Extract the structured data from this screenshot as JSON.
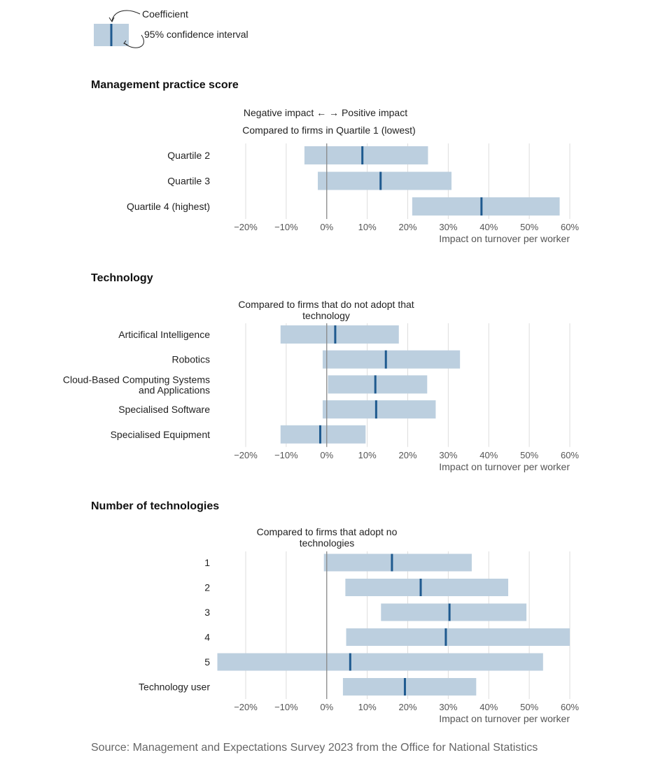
{
  "legend": {
    "coefficient_label": "Coefficient",
    "ci_label": "95% confidence interval"
  },
  "colors": {
    "interval": "#bccfdf",
    "coefficient": "#1f5a8f",
    "grid": "#dddddd",
    "zero_line": "#888888",
    "tick_text": "#555555"
  },
  "source": "Source: Management and Expectations Survey 2023 from the Office for National Statistics",
  "chart_data": [
    {
      "type": "forest",
      "title": "Management practice score",
      "direction_label": "Negative impact ←  → Positive impact",
      "subtitle": "Compared to firms in Quartile 1 (lowest)",
      "xlabel": "Impact on turnover per worker",
      "xlim": [
        -20,
        60
      ],
      "xticks": [
        "−20%",
        "−10%",
        "0%",
        "10%",
        "20%",
        "30%",
        "40%",
        "50%",
        "60%"
      ],
      "rows": [
        {
          "label": "Quartile 2",
          "coef": 8.8,
          "low": -5.5,
          "high": 25.0
        },
        {
          "label": "Quartile 3",
          "coef": 13.3,
          "low": -2.2,
          "high": 30.8
        },
        {
          "label": "Quartile 4 (highest)",
          "coef": 38.2,
          "low": 21.1,
          "high": 57.5
        }
      ]
    },
    {
      "type": "forest",
      "title": "Technology",
      "subtitle": "Compared to firms that do not adopt that technology",
      "xlabel": "Impact on turnover per worker",
      "xlim": [
        -20,
        60
      ],
      "xticks": [
        "−20%",
        "−10%",
        "0%",
        "10%",
        "20%",
        "30%",
        "40%",
        "50%",
        "60%"
      ],
      "rows": [
        {
          "label": "Articifical Intelligence",
          "coef": 2.1,
          "low": -11.4,
          "high": 17.8
        },
        {
          "label": "Robotics",
          "coef": 14.6,
          "low": -1.0,
          "high": 32.9
        },
        {
          "label": "Cloud-Based Computing Systems and Applications",
          "coef": 12.0,
          "low": 0.3,
          "high": 24.8
        },
        {
          "label": "Specialised Software",
          "coef": 12.2,
          "low": -1.0,
          "high": 26.9
        },
        {
          "label": "Specialised Equipment",
          "coef": -1.6,
          "low": -11.4,
          "high": 9.6
        }
      ]
    },
    {
      "type": "forest",
      "title": "Number of technologies",
      "subtitle": "Compared to firms that adopt no technologies",
      "xlabel": "Impact on turnover per worker",
      "xlim": [
        -20,
        60
      ],
      "xticks": [
        "−20%",
        "−10%",
        "0%",
        "10%",
        "20%",
        "30%",
        "40%",
        "50%",
        "60%"
      ],
      "rows": [
        {
          "label": "1",
          "coef": 16.1,
          "low": -0.7,
          "high": 35.8
        },
        {
          "label": "2",
          "coef": 23.2,
          "low": 4.6,
          "high": 44.8
        },
        {
          "label": "3",
          "coef": 30.3,
          "low": 13.4,
          "high": 49.3
        },
        {
          "label": "4",
          "coef": 29.4,
          "low": 4.8,
          "high": 60.0
        },
        {
          "label": "5",
          "coef": 5.8,
          "low": -27.0,
          "high": 53.4
        },
        {
          "label": "Technology user",
          "coef": 19.3,
          "low": 4.0,
          "high": 36.9
        }
      ]
    }
  ]
}
